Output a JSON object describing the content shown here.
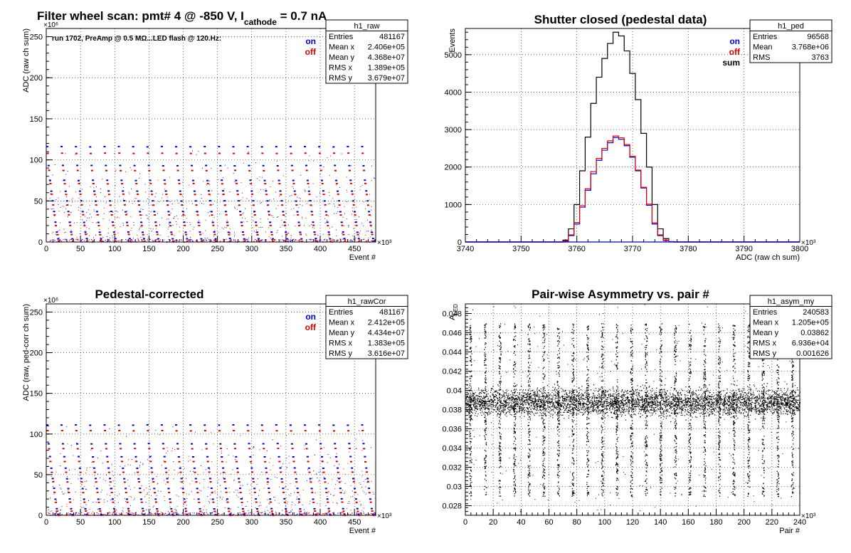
{
  "panels": [
    {
      "id": "raw",
      "title_main": "Filter wheel scan: pmt#   4 @  -850 V, I",
      "title_sub": "cathode",
      "title_tail": "  = 0.7 nA",
      "annotation": "run 1702, PreAmp @ 0.5 MΩ...LED flash @  120.Hz:",
      "ylabel": "ADC (raw ch sum)",
      "xlabel": "Event #",
      "x_multiplier": "×10³",
      "y_multiplier": "×10⁶",
      "legend": [
        {
          "label": "on",
          "color": "#0000cc"
        },
        {
          "label": "off",
          "color": "#dd0000"
        }
      ],
      "stats": {
        "name": "h1_raw",
        "rows": [
          [
            "Entries",
            "481167"
          ],
          [
            "Mean x",
            "2.406e+05"
          ],
          [
            "Mean y",
            "4.368e+07"
          ],
          [
            "RMS x",
            "1.389e+05"
          ],
          [
            "RMS y",
            "3.679e+07"
          ]
        ]
      }
    },
    {
      "id": "ped",
      "title": "Shutter closed (pedestal data)",
      "ylabel": "Events",
      "xlabel": "ADC (raw ch sum)",
      "x_multiplier": "×10³",
      "legend": [
        {
          "label": "on",
          "color": "#0000cc"
        },
        {
          "label": "off",
          "color": "#dd0000"
        },
        {
          "label": "sum",
          "color": "#000000"
        }
      ],
      "stats": {
        "name": "h1_ped",
        "rows": [
          [
            "Entries",
            "96568"
          ],
          [
            "Mean",
            "3.768e+06"
          ],
          [
            "RMS",
            "3763"
          ]
        ]
      }
    },
    {
      "id": "cor",
      "title": "Pedestal-corrected",
      "ylabel": "ADC (raw, ped-corr ch sum)",
      "xlabel": "Event #",
      "x_multiplier": "×10³",
      "y_multiplier": "×10⁶",
      "legend": [
        {
          "label": "on",
          "color": "#0000cc"
        },
        {
          "label": "off",
          "color": "#dd0000"
        }
      ],
      "stats": {
        "name": "h1_rawCor",
        "rows": [
          [
            "Entries",
            "481167"
          ],
          [
            "Mean x",
            "2.412e+05"
          ],
          [
            "Mean y",
            "4.434e+07"
          ],
          [
            "RMS x",
            "1.383e+05"
          ],
          [
            "RMS y",
            "3.616e+07"
          ]
        ]
      }
    },
    {
      "id": "asym",
      "title": "Pair-wise Asymmetry vs. pair #",
      "ylabel": "A",
      "ylabel_sub": "LED",
      "xlabel": "Pair #",
      "x_multiplier": "×10³",
      "stats": {
        "name": "h1_asym_my",
        "rows": [
          [
            "Entries",
            "240583"
          ],
          [
            "Mean x",
            "1.205e+05"
          ],
          [
            "Mean y",
            "0.03862"
          ],
          [
            "RMS x",
            "6.936e+04"
          ],
          [
            "RMS y",
            "0.001626"
          ]
        ]
      }
    }
  ],
  "chart_data": [
    {
      "type": "scatter",
      "title": "Filter wheel scan: pmt#   4 @  -850 V, I cathode = 0.7 nA",
      "xlabel": "Event #",
      "ylabel": "ADC (raw ch sum)",
      "xlim": [
        0,
        481
      ],
      "ylim": [
        0,
        260
      ],
      "grid": true,
      "legend_position": "top-right",
      "x_ticks": [
        0,
        50,
        100,
        150,
        200,
        250,
        300,
        350,
        400,
        450
      ],
      "y_ticks": [
        0,
        50,
        100,
        150,
        200,
        250
      ],
      "scan_period": 20.9,
      "scan_start": 0,
      "series": [
        {
          "name": "on",
          "color": "#0000cc",
          "levels": [
            116,
            93,
            75,
            62,
            50,
            37,
            24,
            12,
            4
          ]
        },
        {
          "name": "off",
          "color": "#dd0000",
          "levels": [
            108,
            87,
            71,
            58,
            45,
            33,
            20,
            9,
            1
          ]
        }
      ]
    },
    {
      "type": "line",
      "title": "Shutter closed (pedestal data)",
      "xlabel": "ADC (raw ch sum)",
      "ylabel": "Events",
      "xlim": [
        3740,
        3800
      ],
      "ylim": [
        0,
        5700
      ],
      "grid": true,
      "legend_position": "top-right",
      "x_ticks": [
        3740,
        3750,
        3760,
        3770,
        3780,
        3790,
        3800
      ],
      "y_ticks": [
        0,
        1000,
        2000,
        3000,
        4000,
        5000
      ],
      "x": [
        3757,
        3758,
        3759,
        3760,
        3761,
        3762,
        3763,
        3764,
        3765,
        3766,
        3767,
        3768,
        3769,
        3770,
        3771,
        3772,
        3773,
        3774,
        3775,
        3776,
        3777,
        3778
      ],
      "series": [
        {
          "name": "sum",
          "color": "#000000",
          "values": [
            0,
            50,
            350,
            1000,
            1900,
            2800,
            3700,
            4400,
            4900,
            5300,
            5600,
            5500,
            5100,
            4500,
            3800,
            2900,
            2000,
            1000,
            350,
            90,
            10,
            0
          ]
        },
        {
          "name": "on",
          "color": "#0000cc",
          "values": [
            0,
            20,
            170,
            480,
            930,
            1380,
            1820,
            2180,
            2450,
            2650,
            2790,
            2740,
            2570,
            2260,
            1900,
            1440,
            980,
            480,
            170,
            40,
            5,
            0
          ]
        },
        {
          "name": "off",
          "color": "#dd0000",
          "values": [
            0,
            25,
            190,
            520,
            970,
            1420,
            1880,
            2230,
            2500,
            2700,
            2830,
            2780,
            2600,
            2290,
            1920,
            1460,
            1010,
            510,
            190,
            50,
            5,
            0
          ]
        }
      ]
    },
    {
      "type": "scatter",
      "title": "Pedestal-corrected",
      "xlabel": "Event #",
      "ylabel": "ADC (raw, ped-corr ch sum)",
      "xlim": [
        0,
        481
      ],
      "ylim": [
        0,
        260
      ],
      "grid": true,
      "legend_position": "top-right",
      "x_ticks": [
        0,
        50,
        100,
        150,
        200,
        250,
        300,
        350,
        400,
        450
      ],
      "y_ticks": [
        0,
        50,
        100,
        150,
        200,
        250
      ],
      "scan_period": 20.9,
      "scan_start": 0,
      "series": [
        {
          "name": "on",
          "color": "#0000cc",
          "levels": [
            111,
            88,
            72,
            58,
            45,
            33,
            20,
            8,
            1
          ]
        },
        {
          "name": "off",
          "color": "#dd0000",
          "levels": [
            104,
            82,
            66,
            53,
            41,
            28,
            16,
            5,
            0
          ]
        }
      ]
    },
    {
      "type": "scatter",
      "title": "Pair-wise Asymmetry vs. pair #",
      "xlabel": "Pair #",
      "ylabel": "A LED",
      "xlim": [
        0,
        240
      ],
      "ylim": [
        0.027,
        0.049
      ],
      "grid": true,
      "x_ticks": [
        0,
        20,
        40,
        60,
        80,
        100,
        120,
        140,
        160,
        180,
        200,
        220,
        240
      ],
      "y_ticks": [
        0.028,
        0.03,
        0.032,
        0.034,
        0.036,
        0.038,
        0.04,
        0.042,
        0.044,
        0.046,
        0.048
      ],
      "band_center": 0.0388,
      "band_halfwidth": 0.0012,
      "spike_x": [
        3.5,
        14,
        24.5,
        35,
        45.5,
        56,
        66.5,
        77,
        87.5,
        98,
        108.5,
        119,
        129.5,
        140,
        150.5,
        161,
        171.5,
        182,
        192.5,
        203,
        213.5,
        224,
        234.5
      ],
      "spike_range": [
        0.029,
        0.047
      ]
    }
  ]
}
